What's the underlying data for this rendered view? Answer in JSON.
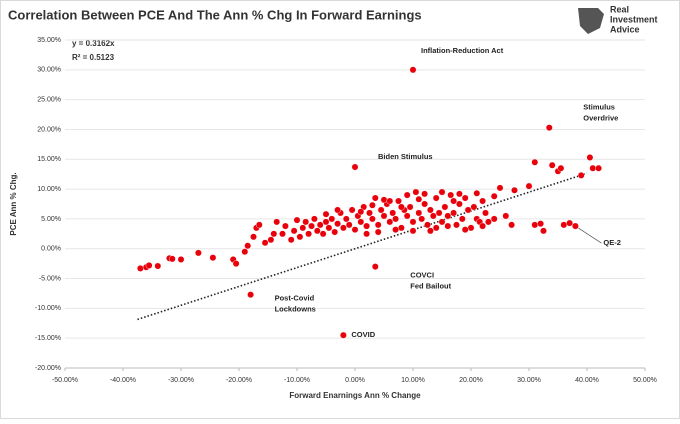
{
  "logo": [
    "Real",
    "Investment",
    "Advice"
  ],
  "chart_data": {
    "type": "scatter",
    "title": "Correlation Between PCE And The Ann % Chg In Forward Earnings",
    "x_label": "Forward Enarnings Ann % Change",
    "y_label": "PCE Ann % Chg.",
    "equation": [
      "y = 0.3162x",
      "R² = 0.5123"
    ],
    "trendline": {
      "slope": 0.3162,
      "x_range": [
        -37.5,
        40
      ]
    },
    "color": "#e8000b",
    "grid": true,
    "xlim": [
      -50,
      50
    ],
    "xticks": [
      {
        "value": -50,
        "label": "-50.00%"
      },
      {
        "value": -40,
        "label": "-40.00%"
      },
      {
        "value": -30,
        "label": "-30.00%"
      },
      {
        "value": -20,
        "label": "-20.00%"
      },
      {
        "value": -10,
        "label": "-10.00%"
      },
      {
        "value": 0,
        "label": "0.00%"
      },
      {
        "value": 10,
        "label": "10.00%"
      },
      {
        "value": 20,
        "label": "20.00%"
      },
      {
        "value": 30,
        "label": "30.00%"
      },
      {
        "value": 40,
        "label": "40.00%"
      },
      {
        "value": 50,
        "label": "50.00%"
      }
    ],
    "ylim": [
      -20,
      35
    ],
    "yticks": [
      {
        "value": -20,
        "label": "-20.00%"
      },
      {
        "value": -15,
        "label": "-15.00%"
      },
      {
        "value": -10,
        "label": "-10.00%"
      },
      {
        "value": -5,
        "label": "-5.00%"
      },
      {
        "value": 0,
        "label": "0.00%"
      },
      {
        "value": 5,
        "label": "5.00%"
      },
      {
        "value": 10,
        "label": "10.00%"
      },
      {
        "value": 15,
        "label": "15.00%"
      },
      {
        "value": 20,
        "label": "20.00%"
      },
      {
        "value": 25,
        "label": "25.00%"
      },
      {
        "value": 30,
        "label": "30.00%"
      },
      {
        "value": 35,
        "label": "35.00%"
      }
    ],
    "x": [
      -37,
      -36,
      -35.5,
      -34,
      -32,
      -31.5,
      -30,
      -27,
      -24.5,
      -21,
      -20.5,
      -19,
      -18.5,
      -17.5,
      -17,
      -16.5,
      -15.5,
      -14.5,
      -13.5,
      -14,
      -12.5,
      -12,
      -11,
      -10.5,
      -10,
      -9.5,
      -9,
      -8.5,
      -8,
      -7.5,
      -7,
      -6.5,
      -6,
      -5.5,
      -5,
      -4.5,
      -4,
      -3.5,
      -3,
      -2.5,
      -2,
      -1.5,
      -1,
      -0.5,
      0,
      0.5,
      1,
      1.5,
      2,
      2.5,
      3,
      3.5,
      4,
      4.5,
      5,
      5.5,
      6,
      6.5,
      7,
      7.5,
      8,
      8.5,
      9,
      9.5,
      10,
      10.5,
      11,
      11.5,
      12,
      12.5,
      13,
      13.5,
      14,
      14.5,
      15,
      15.5,
      16,
      16.5,
      17,
      17.5,
      18,
      18.5,
      19,
      19.5,
      20,
      20.5,
      21,
      21.5,
      22,
      22.5,
      23,
      24,
      25,
      26,
      27,
      27.5,
      30,
      31,
      31,
      32,
      32.5,
      34,
      35,
      35.5,
      36,
      37,
      39,
      40.5,
      41,
      42,
      1,
      3,
      5,
      7,
      9,
      11,
      13,
      15,
      17,
      19,
      21,
      4,
      6,
      8,
      12,
      16,
      18,
      -3,
      -5,
      2,
      10,
      14,
      22,
      24,
      -2,
      3.5,
      -18,
      0,
      10,
      33.5,
      38
    ],
    "values": [
      -3.3,
      -3.1,
      -2.8,
      -2.9,
      -1.6,
      -1.7,
      -1.8,
      -0.7,
      -1.5,
      -1.8,
      -2.5,
      -0.5,
      0.5,
      2,
      3.5,
      4,
      1,
      1.5,
      4.5,
      2.5,
      2.5,
      3.8,
      1.5,
      3,
      4.8,
      2,
      3.5,
      4.5,
      2.5,
      3.8,
      5,
      3,
      4,
      2.5,
      4.5,
      3.5,
      5,
      2.8,
      4.2,
      6,
      3.5,
      5,
      4,
      6.5,
      3.2,
      5.5,
      4.5,
      7,
      3.8,
      6,
      5,
      8.5,
      4,
      6.5,
      5.5,
      7.5,
      4.5,
      6,
      5,
      8,
      3.5,
      6.5,
      5.5,
      7,
      4.5,
      9.5,
      6,
      5,
      7.5,
      4,
      6.5,
      5.5,
      8.5,
      6,
      4.5,
      7,
      5.5,
      9,
      6,
      4,
      7.5,
      5,
      8.5,
      6.5,
      3.5,
      7,
      5,
      4.5,
      8,
      6,
      4.5,
      5,
      10.2,
      5.5,
      4,
      9.8,
      10.5,
      14.5,
      4,
      4.2,
      3,
      14,
      13,
      13.5,
      4,
      4.3,
      12.3,
      15.3,
      13.5,
      13.5,
      6.2,
      7.3,
      8.2,
      3.2,
      9,
      8.3,
      3,
      9.5,
      8,
      3.2,
      9.3,
      2.8,
      8,
      7,
      9.2,
      3.8,
      9.2,
      6.5,
      5.8,
      2.5,
      3,
      3.5,
      3.8,
      8.8,
      -14.5,
      -3,
      -7.7,
      13.7,
      30,
      20.3,
      3.8
    ],
    "annotations": [
      {
        "text": [
          "Inflation-Reduction Act"
        ],
        "x": 10,
        "y": 30
      },
      {
        "text": [
          "Stimulus",
          "Overdrive"
        ],
        "x": 33.5,
        "y": 20.3
      },
      {
        "text": [
          "Biden Stimulus"
        ],
        "x": 0,
        "y": 13.7
      },
      {
        "text": [
          "COVCI",
          "Fed Bailout"
        ],
        "x": 3.5,
        "y": -3
      },
      {
        "text": [
          "Post-Covid",
          "Lockdowns"
        ],
        "x": -18,
        "y": -7.7
      },
      {
        "text": [
          "COVID"
        ],
        "x": -2,
        "y": -14.5
      },
      {
        "text": [
          "QE-2"
        ],
        "x": 38,
        "y": 3.8
      }
    ]
  }
}
